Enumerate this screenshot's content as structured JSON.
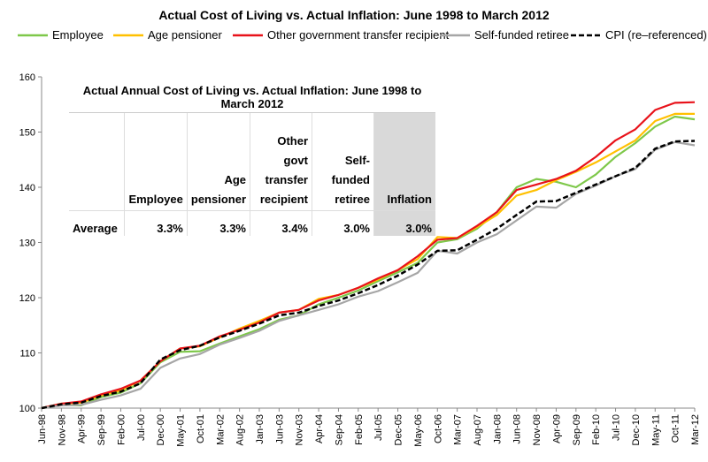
{
  "chart_data": {
    "type": "line",
    "title": "Actual Cost of Living vs. Actual Inflation: June 1998 to March 2012",
    "categories": [
      "Jun-98",
      "Nov-98",
      "Apr-99",
      "Sep-99",
      "Feb-00",
      "Jul-00",
      "Dec-00",
      "May-01",
      "Oct-01",
      "Mar-02",
      "Aug-02",
      "Jan-03",
      "Jun-03",
      "Nov-03",
      "Apr-04",
      "Sep-04",
      "Feb-05",
      "Jul-05",
      "Dec-05",
      "May-06",
      "Oct-06",
      "Mar-07",
      "Aug-07",
      "Jan-08",
      "Jun-08",
      "Nov-08",
      "Apr-09",
      "Sep-09",
      "Feb-10",
      "Jul-10",
      "Dec-10",
      "May-11",
      "Oct-11",
      "Mar-12"
    ],
    "series": [
      {
        "name": "Employee",
        "color": "#7ec84a",
        "values": [
          100,
          100.6,
          100.5,
          102,
          102.8,
          104.5,
          108.3,
          110.2,
          110.3,
          111.7,
          113,
          114.3,
          116,
          116.8,
          118.8,
          120,
          121.3,
          123,
          124.6,
          126.3,
          130,
          130.6,
          132.5,
          135.5,
          140,
          141.5,
          141,
          140,
          142.3,
          145.5,
          148,
          151,
          152.8,
          152.3
        ]
      },
      {
        "name": "Age pensioner",
        "color": "#ffc000",
        "values": [
          100,
          100.8,
          101,
          102.3,
          103.2,
          105,
          108.5,
          110.8,
          111.2,
          112.8,
          114.4,
          115.8,
          117.3,
          117.8,
          119.8,
          120.5,
          121.8,
          123.3,
          125,
          127,
          131,
          130.8,
          132.8,
          135,
          138.5,
          139.5,
          141.3,
          142.8,
          144.5,
          146.5,
          148.5,
          152,
          153.3,
          153.3
        ]
      },
      {
        "name": "Other government transfer recipient",
        "color": "#e8121a",
        "values": [
          100,
          100.8,
          101.2,
          102.5,
          103.5,
          105,
          108.5,
          110.8,
          111.3,
          113,
          114.2,
          115.5,
          117.3,
          117.8,
          119.5,
          120.5,
          121.8,
          123.5,
          125,
          127.5,
          130.5,
          130.8,
          133,
          135.5,
          139.5,
          140.5,
          141.5,
          143,
          145.5,
          148.5,
          150.5,
          154,
          155.3,
          155.4
        ]
      },
      {
        "name": "Self-funded retiree",
        "color": "#a6a6a6",
        "values": [
          100,
          100.5,
          100.6,
          101.5,
          102.3,
          103.5,
          107.3,
          109,
          109.8,
          111.5,
          112.7,
          114,
          115.8,
          116.8,
          117.8,
          118.8,
          120.2,
          121.2,
          122.8,
          124.5,
          128.5,
          128,
          130,
          131.5,
          134,
          136.5,
          136.3,
          138.8,
          140.3,
          142,
          143.3,
          146.8,
          148.2,
          147.6
        ]
      },
      {
        "name": "CPI (re–referenced)",
        "color": "#000000",
        "dashed": true,
        "values": [
          100,
          100.7,
          101,
          102.2,
          103,
          104.5,
          108.8,
          110.5,
          111.3,
          112.8,
          114,
          115.3,
          116.8,
          117.3,
          118.5,
          119.5,
          120.8,
          122.3,
          124,
          126,
          128.5,
          128.6,
          130.5,
          132.5,
          135,
          137.4,
          137.5,
          139,
          140.5,
          142,
          143.5,
          147,
          148.3,
          148.4
        ]
      }
    ],
    "ylim": [
      100,
      160
    ],
    "yticks": [
      100,
      110,
      120,
      130,
      140,
      150,
      160
    ],
    "grid": false,
    "table": {
      "title": "Actual Annual Cost of Living vs. Actual Inflation: June 1998 to March 2012",
      "columns": [
        "Employee",
        "Age pensioner",
        "Other govt transfer recipient",
        "Self-funded retiree",
        "Inflation"
      ],
      "row_label": "Average",
      "cells": [
        "3.3%",
        "3.3%",
        "3.4%",
        "3.0%",
        "3.0%"
      ]
    }
  }
}
